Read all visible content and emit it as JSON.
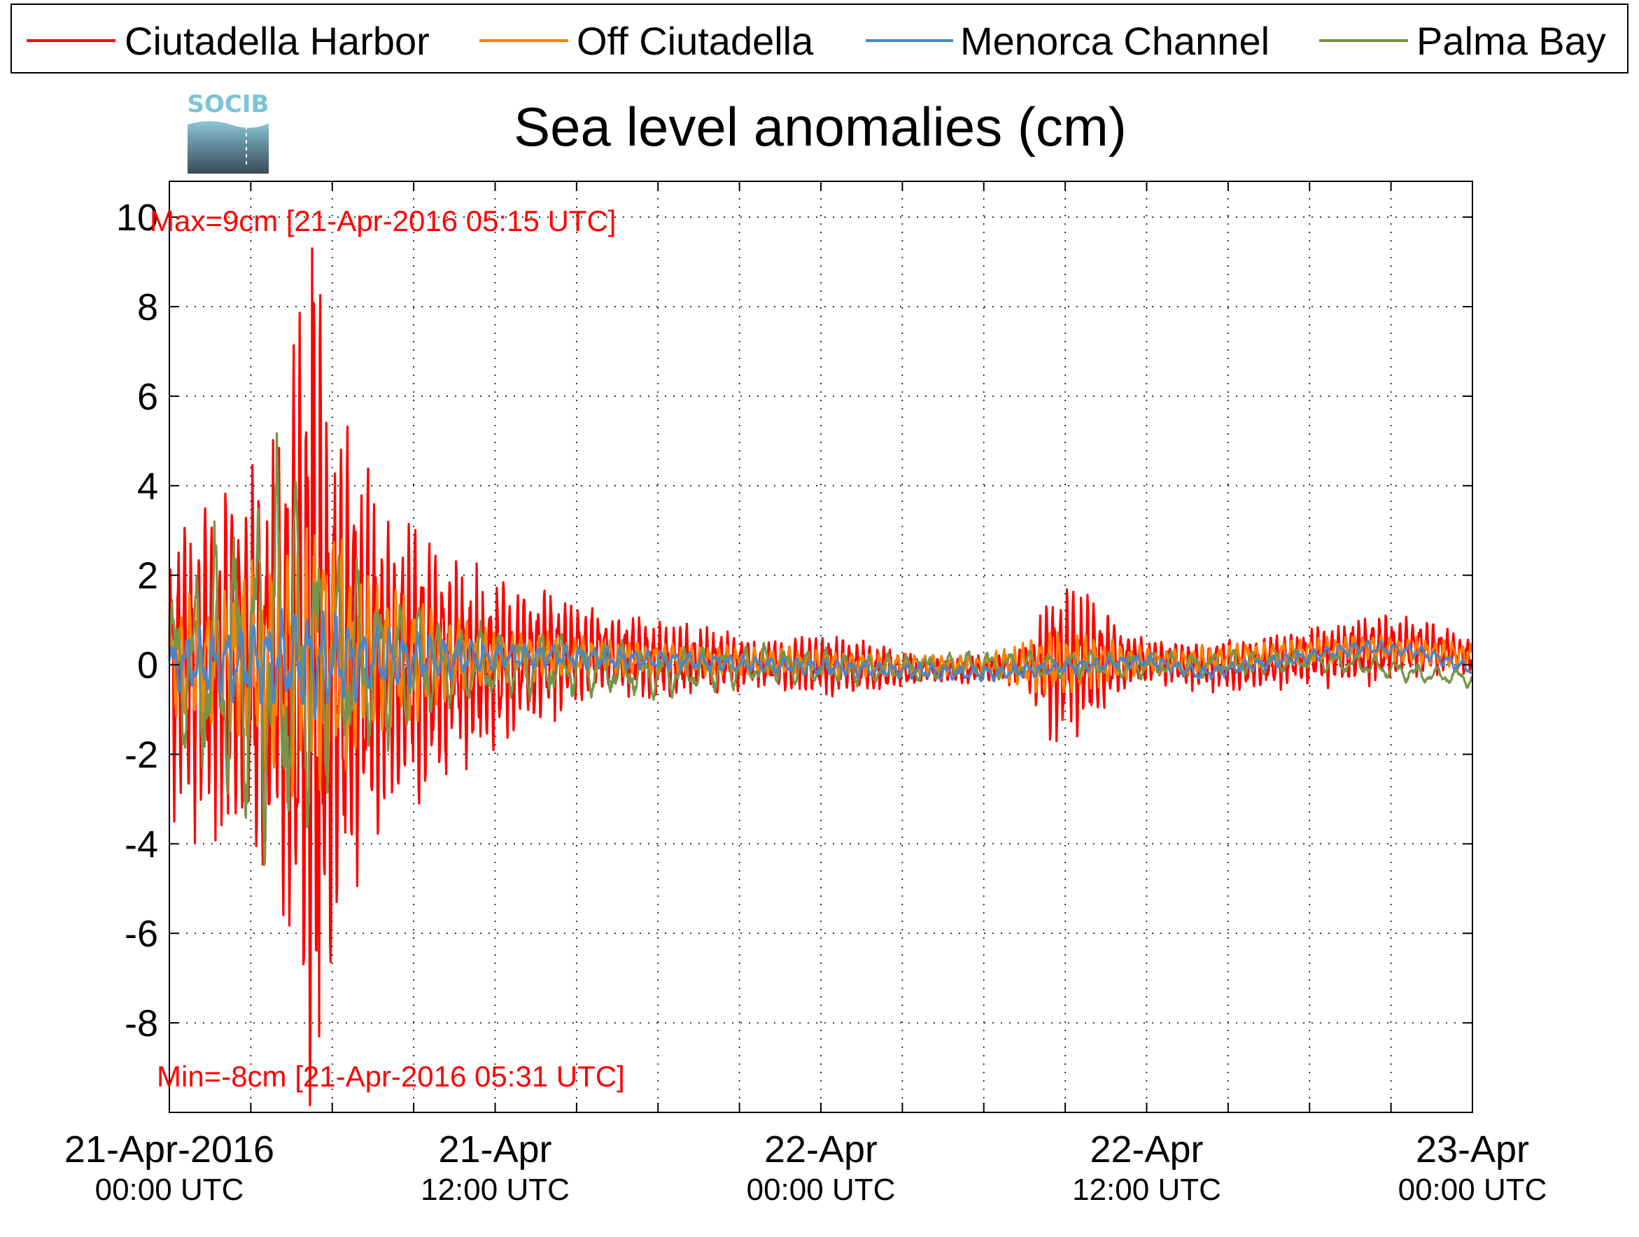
{
  "chart_data": {
    "type": "line",
    "title": "Sea level anomalies (cm)",
    "logo_text": "SOCIB",
    "ylim": [
      -10,
      10.8
    ],
    "yticks": [
      10,
      8,
      6,
      4,
      2,
      0,
      -2,
      -4,
      -6,
      -8
    ],
    "xlim_hours": [
      0,
      48
    ],
    "grid": true,
    "legend_position": "top",
    "x_tick_labels": [
      {
        "hour": 0,
        "date": "21-Apr-2016",
        "time": "00:00 UTC"
      },
      {
        "hour": 12,
        "date": "21-Apr",
        "time": "12:00 UTC"
      },
      {
        "hour": 24,
        "date": "22-Apr",
        "time": "00:00 UTC"
      },
      {
        "hour": 36,
        "date": "22-Apr",
        "time": "12:00 UTC"
      },
      {
        "hour": 48,
        "date": "23-Apr",
        "time": "00:00 UTC"
      }
    ],
    "annotations": {
      "max": "Max=9cm [21-Apr-2016 05:15 UTC]",
      "min": "Min=-8cm [21-Apr-2016 05:31 UTC]"
    },
    "series": [
      {
        "name": "Ciutadella Harbor",
        "color": "#ff0000",
        "envelope": [
          [
            0,
            3.2
          ],
          [
            2,
            3.8
          ],
          [
            4,
            4.8
          ],
          [
            5.25,
            9.3
          ],
          [
            6,
            6.0
          ],
          [
            8,
            3.5
          ],
          [
            10,
            2.6
          ],
          [
            12,
            1.8
          ],
          [
            14,
            1.4
          ],
          [
            16,
            0.9
          ],
          [
            18,
            0.9
          ],
          [
            20,
            0.7
          ],
          [
            22,
            0.5
          ],
          [
            24,
            0.7
          ],
          [
            26,
            0.5
          ],
          [
            28,
            0.3
          ],
          [
            30,
            0.3
          ],
          [
            31.5,
            0.4
          ],
          [
            32.5,
            1.8
          ],
          [
            34,
            1.5
          ],
          [
            35,
            0.7
          ],
          [
            36,
            0.5
          ],
          [
            40,
            0.6
          ],
          [
            42,
            0.6
          ],
          [
            44,
            0.8
          ],
          [
            46,
            0.6
          ],
          [
            48,
            0.4
          ]
        ],
        "baseline": [
          [
            0,
            0
          ],
          [
            12,
            0
          ],
          [
            14,
            0.2
          ],
          [
            16,
            0.3
          ],
          [
            18,
            0.1
          ],
          [
            20,
            0.1
          ],
          [
            22,
            0
          ],
          [
            24,
            0
          ],
          [
            26,
            -0.1
          ],
          [
            28,
            -0.1
          ],
          [
            30,
            -0.1
          ],
          [
            32,
            0
          ],
          [
            34,
            0.1
          ],
          [
            36,
            0.1
          ],
          [
            38,
            0
          ],
          [
            40,
            0
          ],
          [
            42,
            0.2
          ],
          [
            44,
            0.3
          ],
          [
            46,
            0.4
          ],
          [
            48,
            0.2
          ]
        ],
        "period_hours": 0.25,
        "extremes": [
          [
            5.25,
            9.3
          ],
          [
            5.52,
            -8.3
          ]
        ]
      },
      {
        "name": "Off Ciutadella",
        "color": "#ff8000",
        "envelope": [
          [
            0,
            1.2
          ],
          [
            3,
            2.2
          ],
          [
            5.5,
            3.2
          ],
          [
            8,
            1.7
          ],
          [
            10,
            1.0
          ],
          [
            12,
            0.6
          ],
          [
            16,
            0.4
          ],
          [
            24,
            0.3
          ],
          [
            30,
            0.2
          ],
          [
            32.5,
            0.8
          ],
          [
            34,
            0.6
          ],
          [
            36,
            0.3
          ],
          [
            48,
            0.3
          ]
        ],
        "baseline": [
          [
            0,
            0
          ],
          [
            14,
            0.2
          ],
          [
            20,
            0.1
          ],
          [
            26,
            0
          ],
          [
            32,
            0
          ],
          [
            38,
            0.1
          ],
          [
            44,
            0.4
          ],
          [
            48,
            0.2
          ]
        ],
        "period_hours": 0.33
      },
      {
        "name": "Menorca Channel",
        "color": "#4a86c8",
        "envelope": [
          [
            0,
            0.6
          ],
          [
            5,
            1.2
          ],
          [
            8,
            0.7
          ],
          [
            12,
            0.3
          ],
          [
            20,
            0.2
          ],
          [
            36,
            0.15
          ],
          [
            48,
            0.15
          ]
        ],
        "baseline": [
          [
            0,
            0
          ],
          [
            14,
            0.2
          ],
          [
            22,
            0
          ],
          [
            30,
            -0.2
          ],
          [
            36,
            0.1
          ],
          [
            38,
            -0.2
          ],
          [
            44,
            0.4
          ],
          [
            46,
            0.3
          ],
          [
            48,
            -0.1
          ]
        ],
        "period_hours": 0.5
      },
      {
        "name": "Palma Bay",
        "color": "#77944a",
        "envelope": [
          [
            0,
            1.6
          ],
          [
            2.5,
            3.5
          ],
          [
            3.9,
            5.1
          ],
          [
            6,
            2.5
          ],
          [
            8,
            1.8
          ],
          [
            10,
            1.0
          ],
          [
            14,
            0.7
          ],
          [
            20,
            0.5
          ],
          [
            28,
            0.3
          ],
          [
            36,
            0.3
          ],
          [
            48,
            0.2
          ]
        ],
        "baseline": [
          [
            0,
            0
          ],
          [
            14,
            0
          ],
          [
            18,
            -0.2
          ],
          [
            22,
            0
          ],
          [
            26,
            -0.1
          ],
          [
            30,
            0
          ],
          [
            34,
            0
          ],
          [
            38,
            0
          ],
          [
            42,
            0.1
          ],
          [
            44,
            0
          ],
          [
            46,
            -0.2
          ],
          [
            48,
            -0.3
          ]
        ],
        "period_hours": 0.75
      }
    ]
  }
}
